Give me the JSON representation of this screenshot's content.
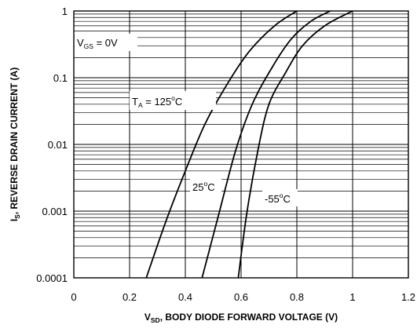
{
  "chart_data": {
    "type": "line",
    "title": "",
    "xlabel": {
      "main": "V",
      "sub": "SD",
      "rest": ", BODY DIODE FORWARD VOLTAGE (V)"
    },
    "ylabel": {
      "main": "I",
      "sub": "S",
      "rest": ", REVERSE DRAIN CURRENT (A)"
    },
    "xlim": [
      0,
      1.2
    ],
    "ylim": [
      0.0001,
      1
    ],
    "yscale": "log",
    "grid": true,
    "x_ticks": [
      "0",
      "0.2",
      "0.4",
      "0.6",
      "0.8",
      "1",
      "1.2"
    ],
    "y_ticks": [
      "1",
      "0.1",
      "0.01",
      "0.001",
      "0.0001"
    ],
    "series": [
      {
        "name": "125°C",
        "x": [
          0.26,
          0.33,
          0.4,
          0.47,
          0.55,
          0.63,
          0.72,
          0.8
        ],
        "y": [
          0.0001,
          0.0007,
          0.004,
          0.02,
          0.08,
          0.25,
          0.6,
          1
        ]
      },
      {
        "name": "25°C",
        "x": [
          0.46,
          0.52,
          0.58,
          0.64,
          0.71,
          0.78,
          0.85,
          0.92
        ],
        "y": [
          0.0001,
          0.0009,
          0.008,
          0.04,
          0.14,
          0.38,
          0.7,
          1
        ]
      },
      {
        "name": "-55°C",
        "x": [
          0.59,
          0.62,
          0.66,
          0.7,
          0.76,
          0.82,
          0.9,
          1.0
        ],
        "y": [
          0.0001,
          0.0009,
          0.008,
          0.04,
          0.12,
          0.3,
          0.6,
          1
        ]
      }
    ],
    "annotations": {
      "vgs": {
        "main": "V",
        "sub": "GS",
        "rest": " = 0V"
      },
      "ta": {
        "main": "T",
        "sub": "A",
        "rest": " = 125",
        "sup": "o",
        "unit": "C"
      },
      "t25": {
        "main": "25",
        "sup": "o",
        "unit": "C"
      },
      "tm55": {
        "main": "-55",
        "sup": "o",
        "unit": "C"
      }
    }
  }
}
